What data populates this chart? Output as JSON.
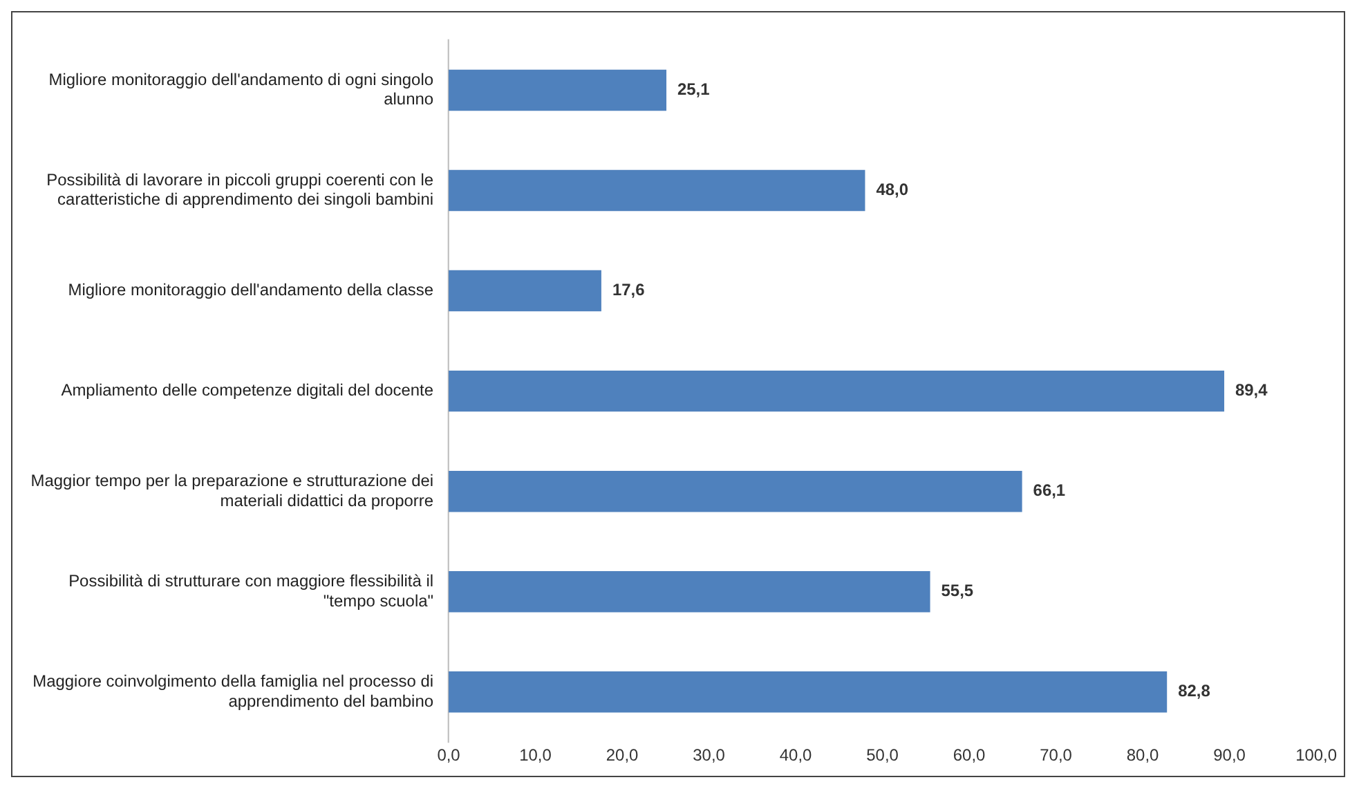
{
  "chart_data": {
    "type": "bar",
    "orientation": "horizontal",
    "categories": [
      "Migliore monitoraggio dell'andamento di ogni singolo alunno",
      "Possibilità di lavorare in piccoli gruppi coerenti con le caratteristiche di apprendimento dei singoli bambini",
      "Migliore monitoraggio dell'andamento della classe",
      "Ampliamento delle competenze digitali del docente",
      "Maggior tempo per la preparazione e strutturazione dei materiali didattici da proporre",
      "Possibilità di strutturare con maggiore flessibilità il \"tempo scuola\"",
      "Maggiore coinvolgimento della famiglia nel processo di apprendimento del bambino"
    ],
    "values": [
      25.1,
      48.0,
      17.6,
      89.4,
      66.1,
      55.5,
      82.8
    ],
    "color": "#4f81bd",
    "xlim": [
      0,
      100
    ],
    "xticks": [
      {
        "value": 0,
        "label": "0,0"
      },
      {
        "value": 10,
        "label": "10,0"
      },
      {
        "value": 20,
        "label": "20,0"
      },
      {
        "value": 30,
        "label": "30,0"
      },
      {
        "value": 40,
        "label": "40,0"
      },
      {
        "value": 50,
        "label": "50,0"
      },
      {
        "value": 60,
        "label": "60,0"
      },
      {
        "value": 70,
        "label": "70,0"
      },
      {
        "value": 80,
        "label": "80,0"
      },
      {
        "value": 90,
        "label": "90,0"
      },
      {
        "value": 100,
        "label": "100,0"
      }
    ],
    "value_labels": [
      "25,1",
      "48,0",
      "17,6",
      "89,4",
      "66,1",
      "55,5",
      "82,8"
    ],
    "grid": false,
    "legend": false
  }
}
